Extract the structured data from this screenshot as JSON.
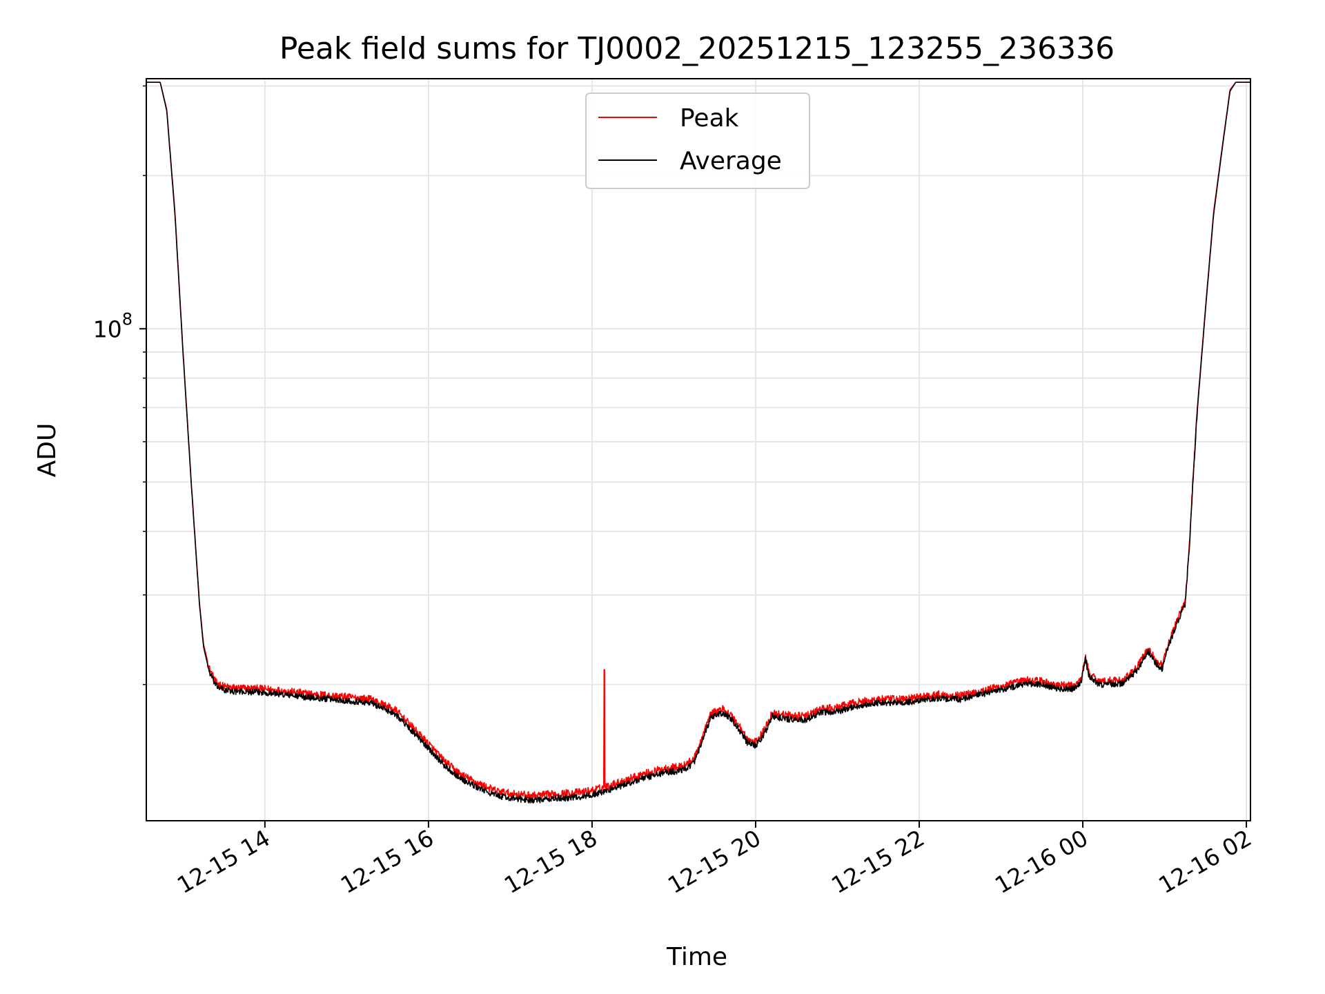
{
  "chart_data": {
    "type": "line",
    "title": "Peak field sums for TJ0002_20251215_123255_236336",
    "xlabel": "Time",
    "ylabel": "ADU",
    "yscale": "log",
    "ylim": [
      10800000,
      310000000
    ],
    "xlim_hours": [
      12.55,
      26.05
    ],
    "x_unit": "hours since 2025-12-15 00:00",
    "grid": true,
    "legend_position": "top-center",
    "colors": {
      "peak": "#ff0000",
      "average": "#000000",
      "grid": "#e6e6e6",
      "frame": "#000000"
    },
    "x_ticks": [
      {
        "value": 14,
        "label": "12-15 14"
      },
      {
        "value": 16,
        "label": "12-15 16"
      },
      {
        "value": 18,
        "label": "12-15 18"
      },
      {
        "value": 20,
        "label": "12-15 20"
      },
      {
        "value": 22,
        "label": "12-15 22"
      },
      {
        "value": 24,
        "label": "12-16 00"
      },
      {
        "value": 26,
        "label": "12-16 02"
      }
    ],
    "y_major_ticks": [
      {
        "value": 100000000,
        "base": "10",
        "exponent": "8"
      }
    ],
    "y_minor_ticks": [
      20000000,
      30000000,
      40000000,
      50000000,
      60000000,
      70000000,
      80000000,
      90000000,
      200000000,
      300000000
    ],
    "series": [
      {
        "name": "Peak",
        "color": "#ff0000",
        "noise": 0.018,
        "spike": {
          "x": 18.15,
          "y": 21400000
        },
        "x": [
          12.55,
          12.72,
          12.8,
          12.9,
          13.0,
          13.1,
          13.2,
          13.25,
          13.32,
          13.4,
          13.5,
          13.6,
          14.0,
          14.5,
          15.0,
          15.3,
          15.6,
          15.8,
          16.0,
          16.2,
          16.4,
          16.6,
          16.8,
          17.0,
          17.3,
          17.6,
          17.9,
          18.1,
          18.3,
          18.6,
          18.9,
          19.1,
          19.25,
          19.35,
          19.45,
          19.6,
          19.7,
          19.8,
          19.9,
          20.0,
          20.1,
          20.2,
          20.4,
          20.6,
          20.8,
          21.0,
          21.2,
          21.5,
          21.8,
          22.0,
          22.2,
          22.5,
          22.8,
          23.1,
          23.3,
          23.5,
          23.7,
          23.9,
          23.98,
          24.03,
          24.08,
          24.2,
          24.5,
          24.65,
          24.8,
          24.9,
          24.97,
          25.02,
          25.1,
          25.15,
          25.25,
          25.3,
          25.35,
          25.4,
          25.5,
          25.6,
          25.7,
          25.8,
          25.87,
          25.93,
          26.05
        ],
        "y": [
          305000000,
          305000000,
          270000000,
          170000000,
          90000000,
          50000000,
          29000000,
          24000000,
          21500000,
          20200000,
          19800000,
          19700000,
          19600000,
          19200000,
          18900000,
          18700000,
          17800000,
          16500000,
          15300000,
          14100000,
          13300000,
          12800000,
          12400000,
          12200000,
          12100000,
          12200000,
          12300000,
          12500000,
          12800000,
          13300000,
          13700000,
          13800000,
          14300000,
          15800000,
          17500000,
          17900000,
          17400000,
          16600000,
          15600000,
          15400000,
          16200000,
          17600000,
          17400000,
          17300000,
          17900000,
          18000000,
          18400000,
          18700000,
          18700000,
          18900000,
          19100000,
          19000000,
          19500000,
          20000000,
          20400000,
          20300000,
          19900000,
          19900000,
          20500000,
          22700000,
          21000000,
          20300000,
          20400000,
          21500000,
          23500000,
          22200000,
          21800000,
          23200000,
          25400000,
          26700000,
          29000000,
          37000000,
          52000000,
          70000000,
          110000000,
          170000000,
          225000000,
          295000000,
          305000000,
          305000000,
          305000000
        ]
      },
      {
        "name": "Average",
        "color": "#000000",
        "noise": 0.014,
        "x": [
          12.55,
          12.72,
          12.8,
          12.9,
          13.0,
          13.1,
          13.2,
          13.25,
          13.32,
          13.4,
          13.5,
          13.6,
          14.0,
          14.5,
          15.0,
          15.3,
          15.6,
          15.8,
          16.0,
          16.2,
          16.4,
          16.6,
          16.8,
          17.0,
          17.3,
          17.6,
          17.9,
          18.1,
          18.3,
          18.6,
          18.9,
          19.1,
          19.25,
          19.35,
          19.45,
          19.6,
          19.7,
          19.8,
          19.9,
          20.0,
          20.1,
          20.2,
          20.4,
          20.6,
          20.8,
          21.0,
          21.2,
          21.5,
          21.8,
          22.0,
          22.2,
          22.5,
          22.8,
          23.1,
          23.3,
          23.5,
          23.7,
          23.9,
          23.98,
          24.03,
          24.08,
          24.2,
          24.5,
          24.65,
          24.8,
          24.9,
          24.97,
          25.02,
          25.1,
          25.15,
          25.25,
          25.3,
          25.35,
          25.4,
          25.5,
          25.6,
          25.7,
          25.8,
          25.87,
          25.93,
          26.05
        ],
        "y": [
          305000000,
          305000000,
          268000000,
          168000000,
          89000000,
          49500000,
          28700000,
          23700000,
          21200000,
          19900000,
          19500000,
          19400000,
          19300000,
          18900000,
          18600000,
          18400000,
          17500000,
          16200000,
          15000000,
          13850000,
          13050000,
          12550000,
          12150000,
          11950000,
          11850000,
          11950000,
          12050000,
          12250000,
          12550000,
          13050000,
          13450000,
          13550000,
          14050000,
          15500000,
          17200000,
          17600000,
          17100000,
          16300000,
          15350000,
          15150000,
          15900000,
          17300000,
          17100000,
          17000000,
          17600000,
          17700000,
          18100000,
          18400000,
          18400000,
          18600000,
          18800000,
          18700000,
          19200000,
          19700000,
          20100000,
          20000000,
          19600000,
          19600000,
          20200000,
          22400000,
          20700000,
          20000000,
          20100000,
          21200000,
          23200000,
          21900000,
          21500000,
          22900000,
          25100000,
          26400000,
          28700000,
          36500000,
          51500000,
          69000000,
          109000000,
          168000000,
          223000000,
          293000000,
          305000000,
          305000000,
          305000000
        ]
      }
    ]
  }
}
